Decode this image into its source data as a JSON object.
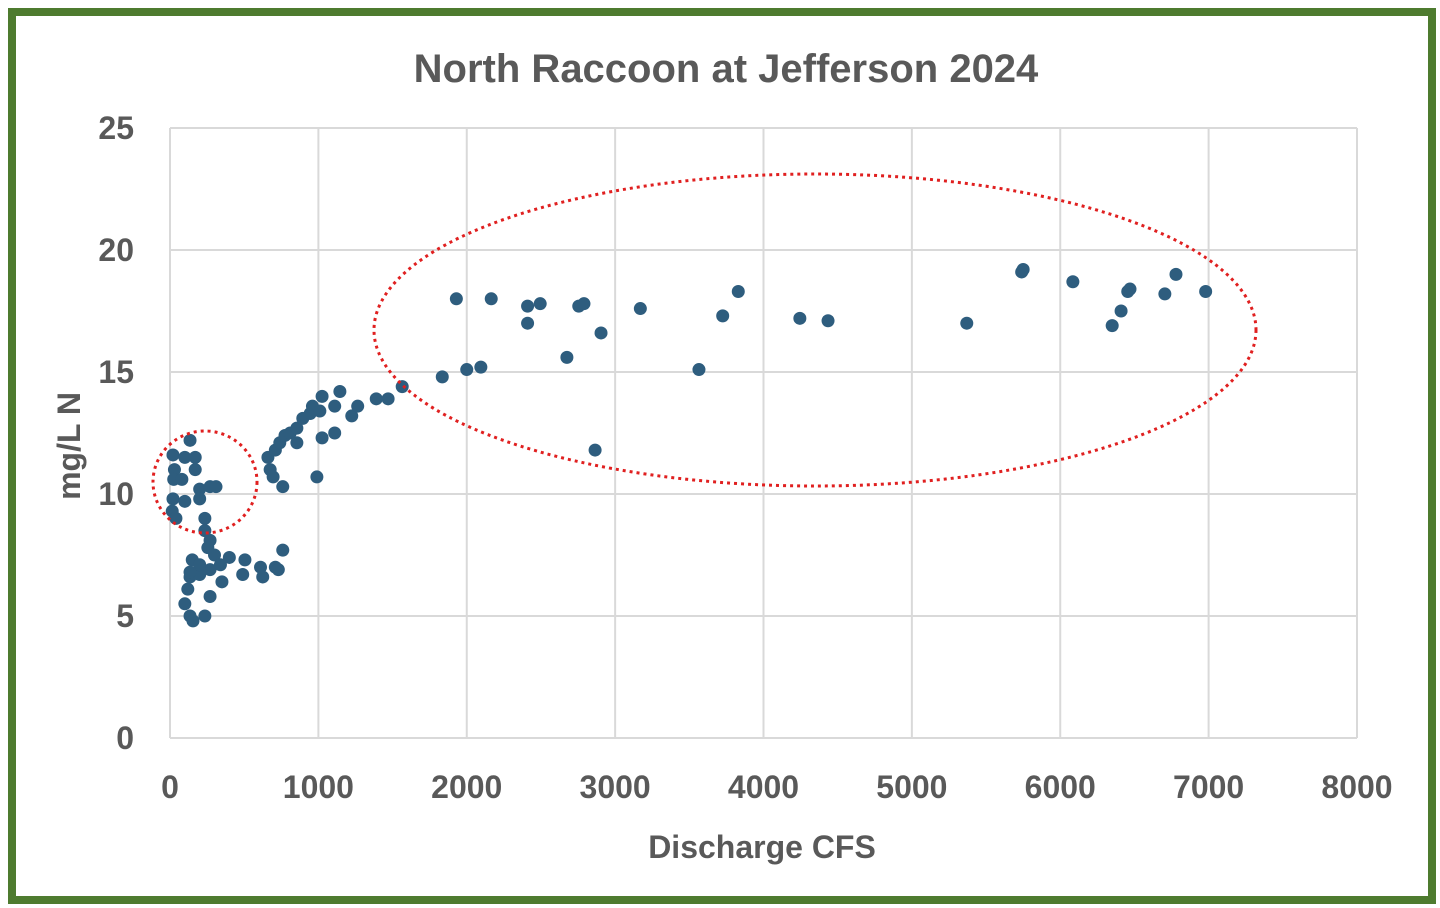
{
  "chart_data": {
    "type": "scatter",
    "title": "North Raccoon at Jefferson 2024",
    "xlabel": "Discharge CFS",
    "ylabel": "mg/L N",
    "xlim": [
      0,
      8000
    ],
    "ylim": [
      0,
      25
    ],
    "xticks": [
      0,
      1000,
      2000,
      3000,
      4000,
      5000,
      6000,
      7000,
      8000
    ],
    "yticks": [
      0,
      5,
      10,
      15,
      20,
      25
    ],
    "grid": true,
    "marker_color": "#2e5d7e",
    "annotation_color": "#e02020",
    "annotations": [
      {
        "shape": "dotted-ellipse",
        "center": [
          100,
          10.5
        ],
        "note": "low-flow cluster"
      },
      {
        "shape": "dotted-ellipse",
        "center": [
          4400,
          16.8
        ],
        "note": "high-flow cluster"
      }
    ],
    "points": [
      [
        20,
        11.6
      ],
      [
        30,
        11.0
      ],
      [
        25,
        10.6
      ],
      [
        80,
        10.6
      ],
      [
        135,
        12.2
      ],
      [
        100,
        11.5
      ],
      [
        170,
        11.5
      ],
      [
        170,
        11.0
      ],
      [
        20,
        9.8
      ],
      [
        15,
        9.3
      ],
      [
        40,
        9.0
      ],
      [
        100,
        9.7
      ],
      [
        200,
        10.2
      ],
      [
        270,
        10.3
      ],
      [
        310,
        10.3
      ],
      [
        200,
        9.8
      ],
      [
        235,
        9.0
      ],
      [
        235,
        8.5
      ],
      [
        270,
        8.1
      ],
      [
        255,
        7.8
      ],
      [
        150,
        7.3
      ],
      [
        300,
        7.5
      ],
      [
        400,
        7.4
      ],
      [
        505,
        7.3
      ],
      [
        610,
        7.0
      ],
      [
        625,
        6.6
      ],
      [
        710,
        7.0
      ],
      [
        730,
        6.9
      ],
      [
        760,
        7.7
      ],
      [
        490,
        6.7
      ],
      [
        350,
        6.4
      ],
      [
        270,
        5.8
      ],
      [
        235,
        5.0
      ],
      [
        135,
        5.0
      ],
      [
        155,
        4.8
      ],
      [
        100,
        5.5
      ],
      [
        120,
        6.1
      ],
      [
        135,
        6.6
      ],
      [
        200,
        6.7
      ],
      [
        270,
        6.9
      ],
      [
        340,
        7.1
      ],
      [
        200,
        7.1
      ],
      [
        135,
        6.8
      ],
      [
        660,
        11.5
      ],
      [
        710,
        11.8
      ],
      [
        740,
        12.1
      ],
      [
        775,
        12.4
      ],
      [
        810,
        12.5
      ],
      [
        855,
        12.7
      ],
      [
        895,
        13.1
      ],
      [
        945,
        13.3
      ],
      [
        960,
        13.6
      ],
      [
        1010,
        13.4
      ],
      [
        1025,
        14.0
      ],
      [
        855,
        12.1
      ],
      [
        675,
        11.0
      ],
      [
        695,
        10.7
      ],
      [
        760,
        10.3
      ],
      [
        990,
        10.7
      ],
      [
        1025,
        12.3
      ],
      [
        1110,
        12.5
      ],
      [
        1110,
        13.6
      ],
      [
        1145,
        14.2
      ],
      [
        1225,
        13.2
      ],
      [
        1265,
        13.6
      ],
      [
        1390,
        13.9
      ],
      [
        1470,
        13.9
      ],
      [
        1565,
        14.4
      ],
      [
        1835,
        14.8
      ],
      [
        1930,
        18.0
      ],
      [
        2000,
        15.1
      ],
      [
        2095,
        15.2
      ],
      [
        2165,
        18.0
      ],
      [
        2410,
        17.7
      ],
      [
        2410,
        17.0
      ],
      [
        2495,
        17.8
      ],
      [
        2675,
        15.6
      ],
      [
        2755,
        17.7
      ],
      [
        2790,
        17.8
      ],
      [
        2865,
        11.8
      ],
      [
        2905,
        16.6
      ],
      [
        3170,
        17.6
      ],
      [
        3565,
        15.1
      ],
      [
        3725,
        17.3
      ],
      [
        3830,
        18.3
      ],
      [
        4245,
        17.2
      ],
      [
        4435,
        17.1
      ],
      [
        5370,
        17.0
      ],
      [
        5740,
        19.1
      ],
      [
        5750,
        19.2
      ],
      [
        6085,
        18.7
      ],
      [
        6350,
        16.9
      ],
      [
        6410,
        17.5
      ],
      [
        6455,
        18.3
      ],
      [
        6470,
        18.4
      ],
      [
        6705,
        18.2
      ],
      [
        6780,
        19.0
      ],
      [
        6980,
        18.3
      ]
    ]
  }
}
